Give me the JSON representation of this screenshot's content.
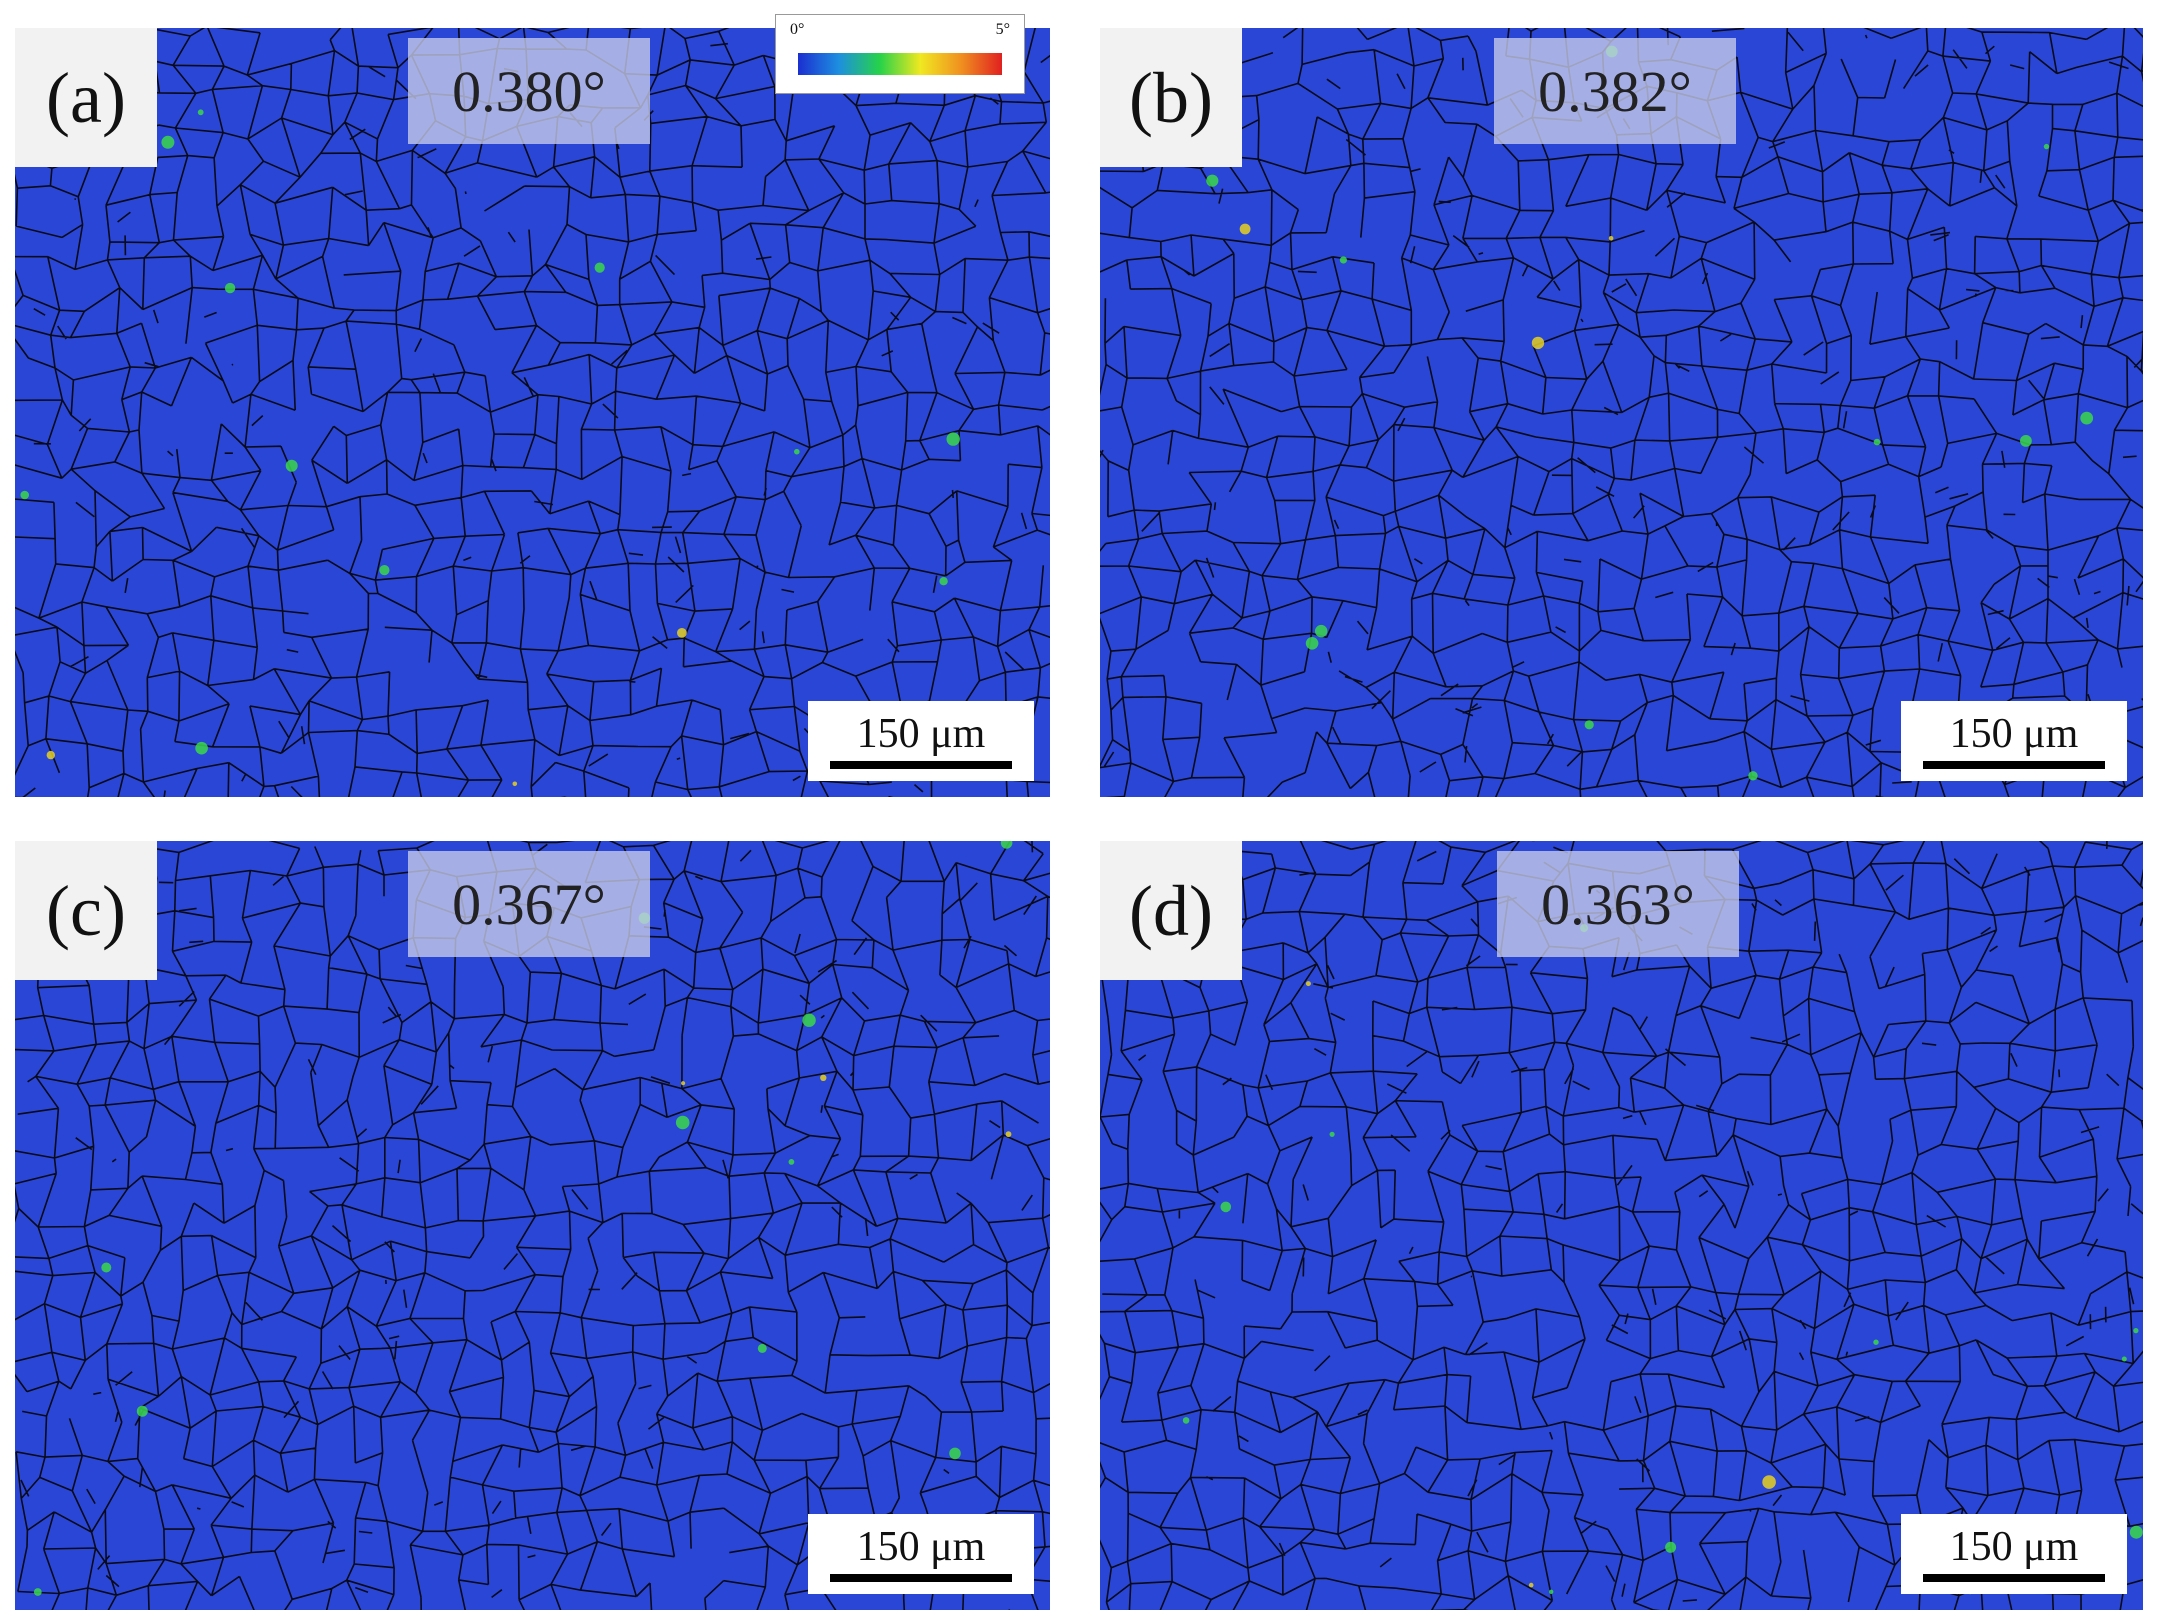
{
  "panels": [
    {
      "label": "(a)",
      "angle": "0.380°",
      "scale_bar": "150 μm"
    },
    {
      "label": "(b)",
      "angle": "0.382°",
      "scale_bar": "150 μm"
    },
    {
      "label": "(c)",
      "angle": "0.367°",
      "scale_bar": "150 μm"
    },
    {
      "label": "(d)",
      "angle": "0.363°",
      "scale_bar": "150 μm"
    }
  ],
  "legend": {
    "min": "0°",
    "max": "5°"
  },
  "colors": {
    "grain_fill": "#2a46d6",
    "grain_boundary": "#0a0a18",
    "highlight": "#39d84a",
    "hot": "#e8d020"
  }
}
